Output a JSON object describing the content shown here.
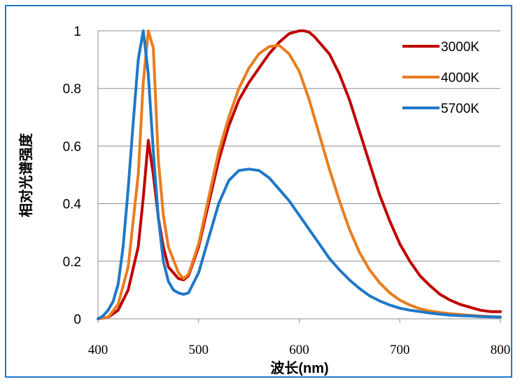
{
  "chart_data": {
    "type": "line",
    "title": "",
    "xlabel": "波长(nm)",
    "ylabel": "相对光谱强度",
    "xlim": [
      400,
      800
    ],
    "ylim": [
      0,
      1
    ],
    "xticks": [
      "400",
      "500",
      "600",
      "700",
      "800"
    ],
    "yticks": [
      "0",
      "0.2",
      "0.4",
      "0.6",
      "0.8",
      "1"
    ],
    "grid": "horizontal",
    "legend_position": "top-right",
    "series": [
      {
        "name": "3000K",
        "color": "#c00000",
        "x": [
          400,
          410,
          420,
          430,
          440,
          445,
          450,
          455,
          460,
          465,
          470,
          480,
          485,
          490,
          500,
          510,
          520,
          530,
          540,
          550,
          560,
          570,
          580,
          590,
          600,
          605,
          610,
          615,
          620,
          630,
          640,
          650,
          660,
          670,
          680,
          690,
          700,
          710,
          720,
          730,
          740,
          750,
          760,
          770,
          780,
          790,
          800
        ],
        "y": [
          0,
          0.005,
          0.03,
          0.1,
          0.25,
          0.42,
          0.62,
          0.5,
          0.35,
          0.25,
          0.18,
          0.14,
          0.135,
          0.15,
          0.25,
          0.4,
          0.55,
          0.67,
          0.76,
          0.82,
          0.87,
          0.92,
          0.96,
          0.99,
          1.0,
          1.0,
          0.995,
          0.98,
          0.96,
          0.92,
          0.85,
          0.76,
          0.65,
          0.54,
          0.43,
          0.34,
          0.26,
          0.2,
          0.15,
          0.115,
          0.085,
          0.065,
          0.05,
          0.04,
          0.03,
          0.025,
          0.025
        ]
      },
      {
        "name": "4000K",
        "color": "#e87d1e",
        "x": [
          400,
          410,
          420,
          430,
          440,
          445,
          450,
          455,
          460,
          465,
          470,
          480,
          485,
          490,
          500,
          510,
          520,
          530,
          540,
          550,
          560,
          570,
          580,
          590,
          600,
          610,
          620,
          630,
          640,
          650,
          660,
          670,
          680,
          690,
          700,
          710,
          720,
          730,
          740,
          750,
          760,
          770,
          780,
          790,
          800
        ],
        "y": [
          0,
          0.005,
          0.05,
          0.18,
          0.5,
          0.82,
          1.0,
          0.94,
          0.55,
          0.36,
          0.25,
          0.16,
          0.14,
          0.155,
          0.26,
          0.42,
          0.58,
          0.7,
          0.8,
          0.87,
          0.92,
          0.945,
          0.95,
          0.92,
          0.86,
          0.76,
          0.64,
          0.52,
          0.41,
          0.31,
          0.23,
          0.17,
          0.125,
          0.09,
          0.065,
          0.048,
          0.035,
          0.027,
          0.022,
          0.018,
          0.015,
          0.012,
          0.01,
          0.008,
          0.006
        ]
      },
      {
        "name": "5700K",
        "color": "#1f78c8",
        "x": [
          400,
          405,
          410,
          415,
          420,
          425,
          430,
          435,
          440,
          445,
          450,
          455,
          460,
          465,
          470,
          475,
          480,
          485,
          490,
          500,
          510,
          520,
          530,
          540,
          550,
          560,
          570,
          580,
          590,
          600,
          610,
          620,
          630,
          640,
          650,
          660,
          670,
          680,
          690,
          700,
          710,
          720,
          730,
          740,
          750,
          760,
          770,
          780,
          790,
          800
        ],
        "y": [
          0,
          0.01,
          0.03,
          0.06,
          0.12,
          0.25,
          0.45,
          0.68,
          0.9,
          1.0,
          0.85,
          0.58,
          0.35,
          0.2,
          0.13,
          0.1,
          0.09,
          0.085,
          0.09,
          0.16,
          0.28,
          0.4,
          0.48,
          0.515,
          0.52,
          0.515,
          0.49,
          0.45,
          0.41,
          0.36,
          0.31,
          0.26,
          0.21,
          0.17,
          0.135,
          0.105,
          0.08,
          0.062,
          0.048,
          0.037,
          0.03,
          0.025,
          0.02,
          0.016,
          0.013,
          0.011,
          0.01,
          0.008,
          0.007,
          0.006
        ]
      }
    ]
  }
}
